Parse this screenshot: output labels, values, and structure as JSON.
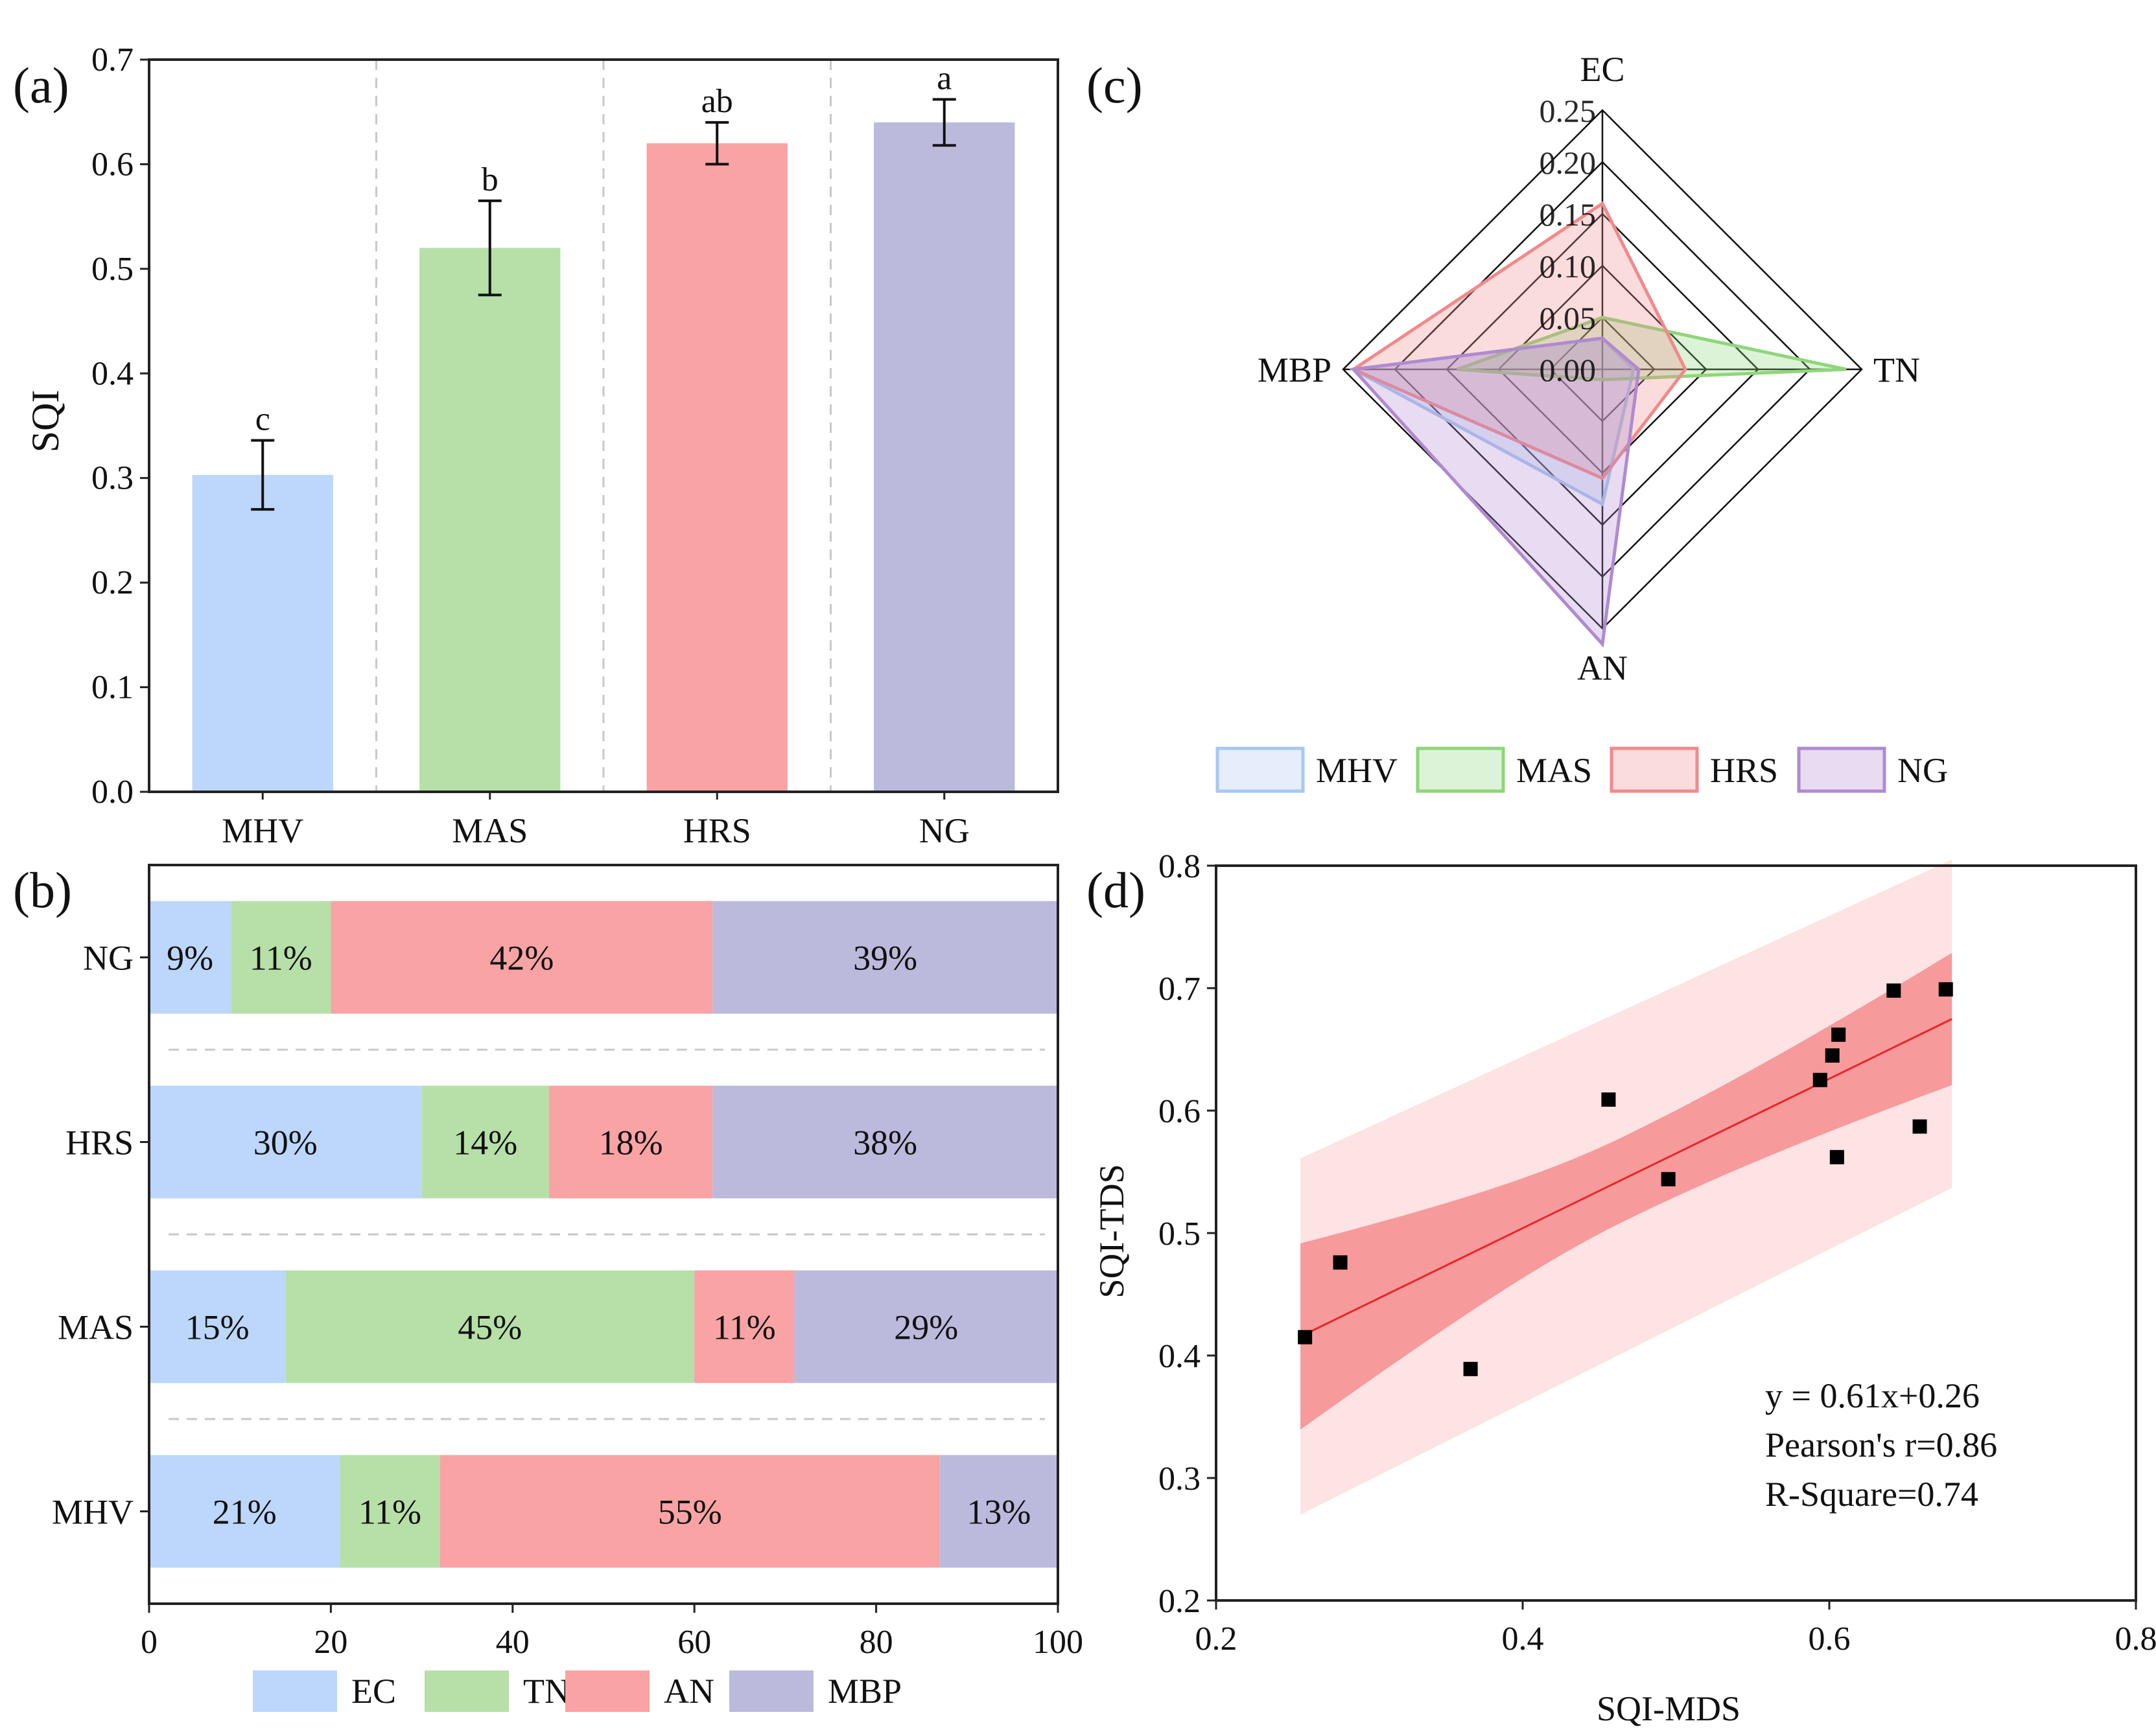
{
  "chart_data": [
    {
      "panel": "(a)",
      "type": "bar",
      "title": "",
      "xlabel": "",
      "ylabel": "SQI",
      "ylim": [
        0,
        0.7
      ],
      "yticks": [
        "0.0",
        "0.1",
        "0.2",
        "0.3",
        "0.4",
        "0.5",
        "0.6",
        "0.7"
      ],
      "categories": [
        "MHV",
        "MAS",
        "HRS",
        "NG"
      ],
      "values": [
        0.303,
        0.52,
        0.62,
        0.64
      ],
      "errors": [
        0.033,
        0.045,
        0.02,
        0.022
      ],
      "letters": [
        "c",
        "b",
        "ab",
        "a"
      ],
      "colors": [
        "#bcd7fb",
        "#b6e0a7",
        "#f9a3a4",
        "#bbbadd"
      ]
    },
    {
      "panel": "(b)",
      "type": "bar",
      "orientation": "horizontal-stacked",
      "xlim": [
        0,
        100
      ],
      "xticks": [
        "0",
        "20",
        "40",
        "60",
        "80",
        "100"
      ],
      "categories": [
        "NG",
        "HRS",
        "MAS",
        "MHV"
      ],
      "series": [
        {
          "name": "EC",
          "color": "#bcd7fb",
          "values": [
            9,
            30,
            15,
            21
          ],
          "labels": [
            "9%",
            "30%",
            "15%",
            "21%"
          ]
        },
        {
          "name": "TN",
          "color": "#b6e0a7",
          "values": [
            11,
            14,
            45,
            11
          ],
          "labels": [
            "11%",
            "14%",
            "45%",
            "11%"
          ]
        },
        {
          "name": "AN",
          "color": "#f9a3a4",
          "values": [
            42,
            18,
            11,
            55
          ],
          "labels": [
            "42%",
            "18%",
            "11%",
            "55%"
          ]
        },
        {
          "name": "MBP",
          "color": "#bbbadd",
          "values": [
            39,
            38,
            29,
            13
          ],
          "labels": [
            "39%",
            "38%",
            "29%",
            "13%"
          ]
        }
      ],
      "legend": [
        "EC",
        "TN",
        "AN",
        "MBP"
      ]
    },
    {
      "panel": "(c)",
      "type": "radar",
      "axes": [
        "EC",
        "TN",
        "AN",
        "MBP"
      ],
      "rmax": 0.25,
      "rticks": [
        "0.00",
        "0.05",
        "0.10",
        "0.15",
        "0.20",
        "0.25"
      ],
      "series": [
        {
          "name": "MHV",
          "color": "#a9c8f0",
          "values": [
            0.03,
            0.03,
            0.13,
            0.24
          ]
        },
        {
          "name": "MAS",
          "color": "#8fd67a",
          "values": [
            0.05,
            0.235,
            0.01,
            0.14
          ]
        },
        {
          "name": "HRS",
          "color": "#f08a8c",
          "values": [
            0.16,
            0.08,
            0.105,
            0.24
          ]
        },
        {
          "name": "NG",
          "color": "#b08ad0",
          "values": [
            0.03,
            0.035,
            0.265,
            0.24
          ]
        }
      ],
      "legend": [
        "MHV",
        "MAS",
        "HRS",
        "NG"
      ]
    },
    {
      "panel": "(d)",
      "type": "scatter",
      "xlabel": "SQI-MDS",
      "ylabel": "SQI-TDS",
      "xlim": [
        0.2,
        0.8
      ],
      "ylim": [
        0.2,
        0.8
      ],
      "xticks": [
        "0.2",
        "0.4",
        "0.6",
        "0.8"
      ],
      "yticks": [
        "0.2",
        "0.3",
        "0.4",
        "0.5",
        "0.6",
        "0.7",
        "0.8"
      ],
      "x": [
        0.258,
        0.281,
        0.366,
        0.456,
        0.495,
        0.594,
        0.602,
        0.605,
        0.606,
        0.642,
        0.659,
        0.676
      ],
      "y": [
        0.415,
        0.476,
        0.389,
        0.609,
        0.544,
        0.625,
        0.645,
        0.562,
        0.662,
        0.698,
        0.587,
        0.699
      ],
      "fit": {
        "slope": 0.61,
        "intercept": 0.26,
        "x_range": [
          0.255,
          0.68
        ]
      },
      "confidence_band": {
        "x": [
          0.255,
          0.68
        ],
        "lower": [
          0.34,
          0.617
        ],
        "upper": [
          0.492,
          0.725
        ]
      },
      "prediction_band": {
        "x": [
          0.255,
          0.68
        ],
        "lower": [
          0.27,
          0.537
        ],
        "upper": [
          0.561,
          0.805
        ]
      },
      "annotations": [
        "y = 0.61x+0.26",
        "Pearson's r=0.86",
        "R-Square=0.74"
      ]
    }
  ]
}
